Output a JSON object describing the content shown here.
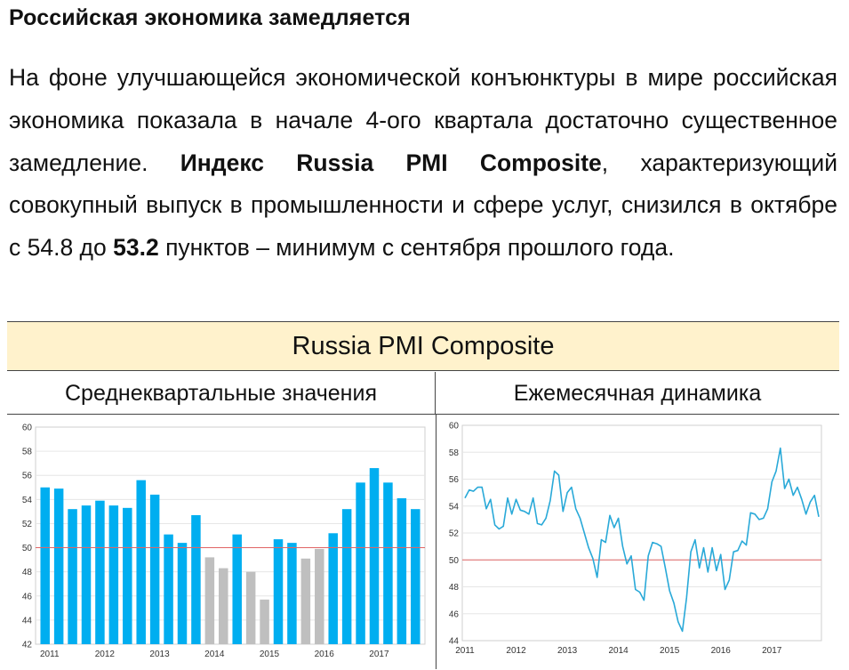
{
  "heading": "Российская экономика замедляется",
  "paragraph": {
    "part1": "На фоне улучшающейся экономической конъюнктуры в мире российская экономика показала в начале 4-ого квартала достаточно существенное замедление. ",
    "bold1": "Индекс Russia PMI Composite",
    "part2": ", характеризующий совокупный выпуск в промышленности и сфере услуг, снизился в октябре с 54.8 до ",
    "bold2": "53.2",
    "part3": " пунктов – минимум с сентября прошлого года."
  },
  "panel_title": "Russia PMI Composite",
  "left_header": "Среднеквартальные значения",
  "right_header": "Ежемесячная динамика",
  "colors": {
    "blue": "#00aef0",
    "gray": "#bfbfbf",
    "line": "#29a9d8",
    "threshold": "#e06666"
  },
  "chart_data": [
    {
      "type": "bar",
      "ylim": [
        42,
        60
      ],
      "yticks": [
        "42",
        "44",
        "46",
        "48",
        "50",
        "52",
        "54",
        "56",
        "58",
        "60"
      ],
      "xticks": [
        "2011",
        "2012",
        "2013",
        "2014",
        "2015",
        "2016",
        "2017"
      ],
      "threshold": 50,
      "values": [
        55.0,
        54.9,
        53.2,
        53.5,
        53.9,
        53.5,
        53.3,
        55.6,
        54.4,
        51.1,
        50.4,
        52.7,
        49.2,
        48.3,
        51.1,
        48.0,
        45.7,
        50.7,
        50.4,
        49.1,
        49.9,
        51.2,
        53.2,
        55.4,
        56.6,
        55.4,
        54.1,
        53.2
      ],
      "bar_colors": [
        "blue",
        "blue",
        "blue",
        "blue",
        "blue",
        "blue",
        "blue",
        "blue",
        "blue",
        "blue",
        "blue",
        "blue",
        "gray",
        "gray",
        "blue",
        "gray",
        "gray",
        "blue",
        "blue",
        "gray",
        "gray",
        "blue",
        "blue",
        "blue",
        "blue",
        "blue",
        "blue",
        "blue"
      ]
    },
    {
      "type": "line",
      "ylim": [
        44,
        60
      ],
      "yticks": [
        "44",
        "46",
        "48",
        "50",
        "52",
        "54",
        "56",
        "58",
        "60"
      ],
      "xticks": [
        "2011",
        "2012",
        "2013",
        "2014",
        "2015",
        "2016",
        "2017"
      ],
      "threshold": 50,
      "values": [
        54.6,
        55.2,
        55.1,
        55.4,
        55.4,
        53.8,
        54.5,
        52.6,
        52.3,
        52.5,
        54.6,
        53.4,
        54.5,
        53.7,
        53.6,
        53.4,
        54.6,
        52.7,
        52.6,
        53.1,
        54.4,
        56.6,
        56.3,
        53.6,
        55.0,
        55.4,
        53.8,
        53.1,
        52.0,
        50.9,
        50.1,
        48.7,
        51.5,
        51.3,
        53.3,
        52.4,
        53.1,
        51.0,
        49.7,
        50.3,
        47.8,
        47.6,
        47.0,
        50.3,
        51.3,
        51.2,
        51.0,
        49.4,
        47.7,
        46.8,
        45.4,
        44.7,
        47.2,
        50.6,
        51.5,
        49.4,
        50.9,
        49.1,
        50.9,
        49.2,
        50.4,
        47.8,
        48.5,
        50.6,
        50.7,
        51.4,
        51.1,
        53.5,
        53.4,
        53.0,
        53.1,
        53.8,
        55.8,
        56.6,
        58.3,
        55.3,
        56.0,
        54.8,
        55.4,
        54.5,
        53.4,
        54.3,
        54.8,
        53.2
      ]
    }
  ]
}
